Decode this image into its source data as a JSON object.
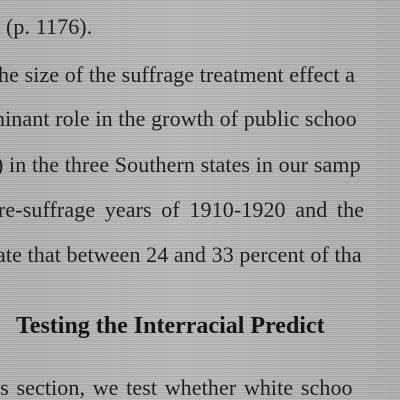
{
  "document": {
    "lines": [
      "(p. 1176).",
      "he size of the suffrage treatment effect a",
      "ninant role in the growth of public schoo",
      ") in the three Southern states in our samp",
      "re-suffrage years of 1910-1920 and the",
      "ate that between 24 and 33 percent of tha"
    ],
    "section_heading": "Testing the Interracial Predict",
    "section_lines": [
      "is section, we test whether white schoo"
    ]
  }
}
